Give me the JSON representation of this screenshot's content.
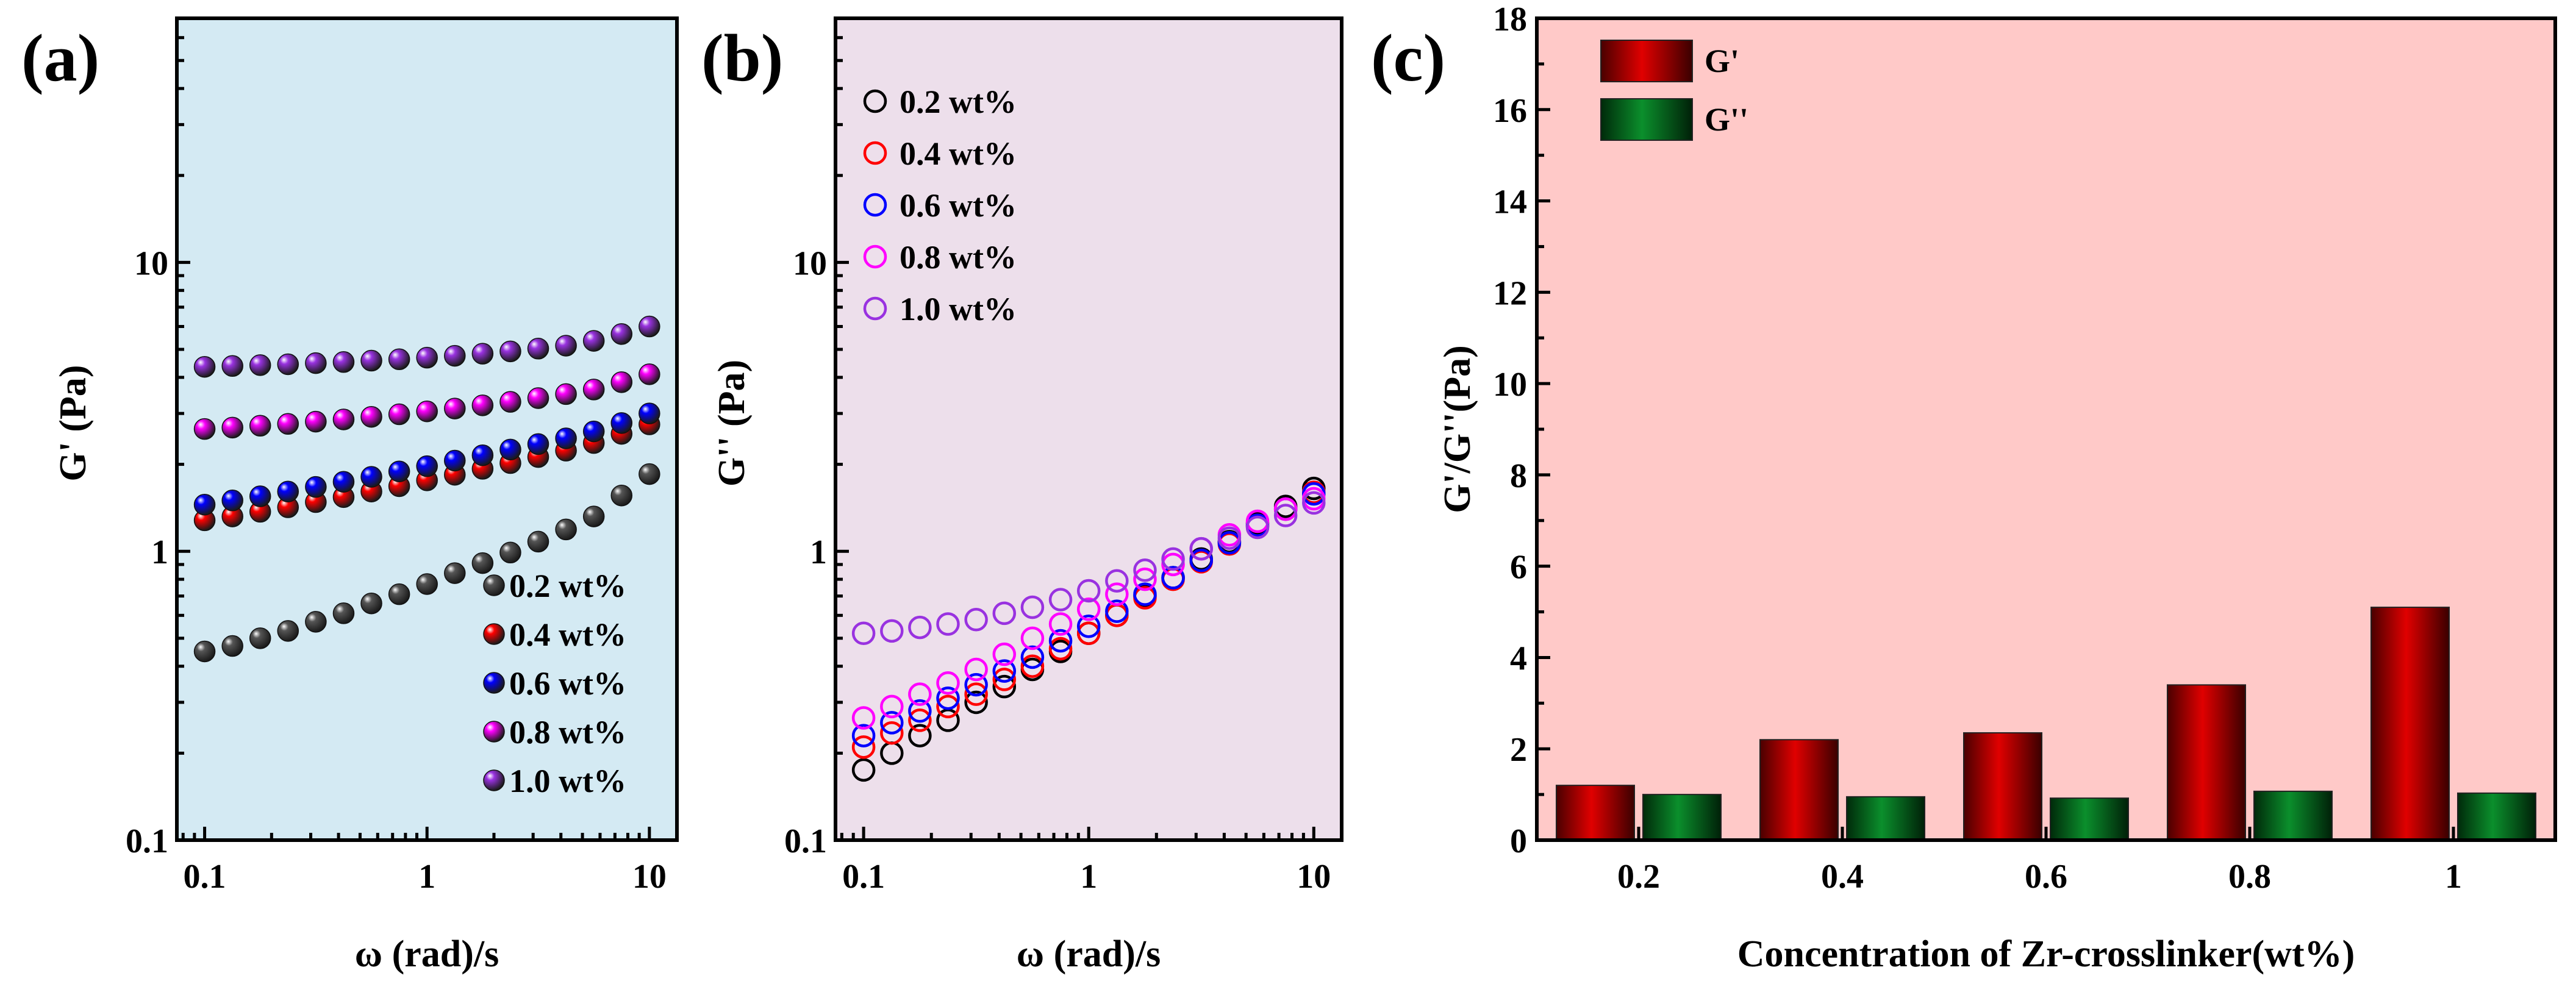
{
  "colors": {
    "panel_a_bg": "#d4eaf3",
    "panel_b_bg": "#eddfeb",
    "panel_c_bg": "#ffc9c8",
    "c02": "#000000",
    "c04": "#ff0000",
    "c06": "#0000ff",
    "c08": "#ff00ff",
    "c10": "#9932e0",
    "bar_g1": "#e00000",
    "bar_g2": "#0b8f2c"
  },
  "chart_data": [
    {
      "panel": "a",
      "label": "(a)",
      "type": "scatter",
      "xscale": "log",
      "yscale": "log",
      "xlabel": "ω (rad)/s",
      "ylabel": "G' (Pa)",
      "xlim": [
        0.075,
        13.3
      ],
      "ylim": [
        0.1,
        70
      ],
      "xticks": [
        {
          "v": 0.1,
          "label": "0.1"
        },
        {
          "v": 1,
          "label": "1"
        },
        {
          "v": 10,
          "label": "10"
        }
      ],
      "yticks": [
        {
          "v": 0.1,
          "label": "0.1"
        },
        {
          "v": 1,
          "label": "1"
        },
        {
          "v": 10,
          "label": "10"
        }
      ],
      "marker": "filled-sphere",
      "legend_position": "bottom-right",
      "x": [
        0.1,
        0.1334,
        0.1778,
        0.2371,
        0.3162,
        0.4217,
        0.5623,
        0.7499,
        1.0,
        1.3335,
        1.7783,
        2.3714,
        3.1623,
        4.217,
        5.6234,
        7.4989,
        10.0
      ],
      "series": [
        {
          "name": "0.2 wt%",
          "color": "c02",
          "values": [
            0.45,
            0.47,
            0.5,
            0.53,
            0.57,
            0.61,
            0.66,
            0.71,
            0.77,
            0.84,
            0.91,
            0.99,
            1.08,
            1.19,
            1.32,
            1.56,
            1.85
          ]
        },
        {
          "name": "0.4 wt%",
          "color": "c04",
          "values": [
            1.28,
            1.32,
            1.37,
            1.42,
            1.48,
            1.54,
            1.61,
            1.68,
            1.76,
            1.84,
            1.93,
            2.02,
            2.12,
            2.23,
            2.37,
            2.55,
            2.75
          ]
        },
        {
          "name": "0.6 wt%",
          "color": "c06",
          "values": [
            1.45,
            1.5,
            1.55,
            1.61,
            1.67,
            1.74,
            1.81,
            1.89,
            1.97,
            2.06,
            2.15,
            2.25,
            2.35,
            2.46,
            2.6,
            2.78,
            3.0
          ]
        },
        {
          "name": "0.8 wt%",
          "color": "c08",
          "values": [
            2.65,
            2.68,
            2.72,
            2.76,
            2.81,
            2.86,
            2.92,
            2.98,
            3.05,
            3.12,
            3.2,
            3.29,
            3.39,
            3.5,
            3.63,
            3.85,
            4.1
          ]
        },
        {
          "name": "1.0 wt%",
          "color": "c10",
          "values": [
            4.35,
            4.38,
            4.41,
            4.44,
            4.48,
            4.52,
            4.57,
            4.62,
            4.68,
            4.75,
            4.83,
            4.92,
            5.03,
            5.15,
            5.35,
            5.65,
            6.0
          ]
        }
      ]
    },
    {
      "panel": "b",
      "label": "(b)",
      "type": "scatter",
      "xscale": "log",
      "yscale": "log",
      "xlabel": "ω (rad)/s",
      "ylabel": "G'' (Pa)",
      "xlim": [
        0.075,
        13.3
      ],
      "ylim": [
        0.1,
        70
      ],
      "xticks": [
        {
          "v": 0.1,
          "label": "0.1"
        },
        {
          "v": 1,
          "label": "1"
        },
        {
          "v": 10,
          "label": "10"
        }
      ],
      "yticks": [
        {
          "v": 0.1,
          "label": "0.1"
        },
        {
          "v": 1,
          "label": "1"
        },
        {
          "v": 10,
          "label": "10"
        }
      ],
      "marker": "open-circle",
      "legend_position": "top-left",
      "x": [
        0.1,
        0.1334,
        0.1778,
        0.2371,
        0.3162,
        0.4217,
        0.5623,
        0.7499,
        1.0,
        1.3335,
        1.7783,
        2.3714,
        3.1623,
        4.217,
        5.6234,
        7.4989,
        10.0
      ],
      "series": [
        {
          "name": "0.2 wt%",
          "color": "c02",
          "values": [
            0.175,
            0.2,
            0.23,
            0.26,
            0.3,
            0.34,
            0.39,
            0.45,
            0.52,
            0.6,
            0.7,
            0.81,
            0.94,
            1.08,
            1.25,
            1.43,
            1.65
          ]
        },
        {
          "name": "0.4 wt%",
          "color": "c04",
          "values": [
            0.21,
            0.235,
            0.26,
            0.29,
            0.32,
            0.36,
            0.4,
            0.46,
            0.52,
            0.6,
            0.69,
            0.8,
            0.92,
            1.06,
            1.22,
            1.4,
            1.6
          ]
        },
        {
          "name": "0.6 wt%",
          "color": "c06",
          "values": [
            0.23,
            0.255,
            0.28,
            0.31,
            0.345,
            0.385,
            0.43,
            0.49,
            0.55,
            0.62,
            0.71,
            0.81,
            0.93,
            1.07,
            1.23,
            1.4,
            1.58
          ]
        },
        {
          "name": "0.8 wt%",
          "color": "c08",
          "values": [
            0.265,
            0.29,
            0.32,
            0.35,
            0.39,
            0.44,
            0.5,
            0.56,
            0.63,
            0.71,
            0.8,
            0.9,
            1.02,
            1.14,
            1.27,
            1.4,
            1.52
          ]
        },
        {
          "name": "1.0 wt%",
          "color": "c10",
          "values": [
            0.52,
            0.53,
            0.545,
            0.56,
            0.58,
            0.61,
            0.64,
            0.68,
            0.73,
            0.79,
            0.86,
            0.94,
            1.02,
            1.11,
            1.21,
            1.33,
            1.47
          ]
        }
      ]
    },
    {
      "panel": "c",
      "label": "(c)",
      "type": "bar",
      "xlabel": "Concentration of Zr-crosslinker(wt%)",
      "ylabel": "G'/G''(Pa)",
      "categories": [
        "0.2",
        "0.4",
        "0.6",
        "0.8",
        "1"
      ],
      "ylim": [
        0,
        18
      ],
      "yticks": [
        0,
        2,
        4,
        6,
        8,
        10,
        12,
        14,
        16,
        18
      ],
      "legend_position": "top-left",
      "series": [
        {
          "name": "G'",
          "color": "bar_g1",
          "values": [
            1.2,
            2.2,
            2.35,
            3.4,
            5.1
          ]
        },
        {
          "name": "G''",
          "color": "bar_g2",
          "values": [
            1.0,
            0.95,
            0.92,
            1.07,
            1.03
          ]
        }
      ]
    }
  ]
}
